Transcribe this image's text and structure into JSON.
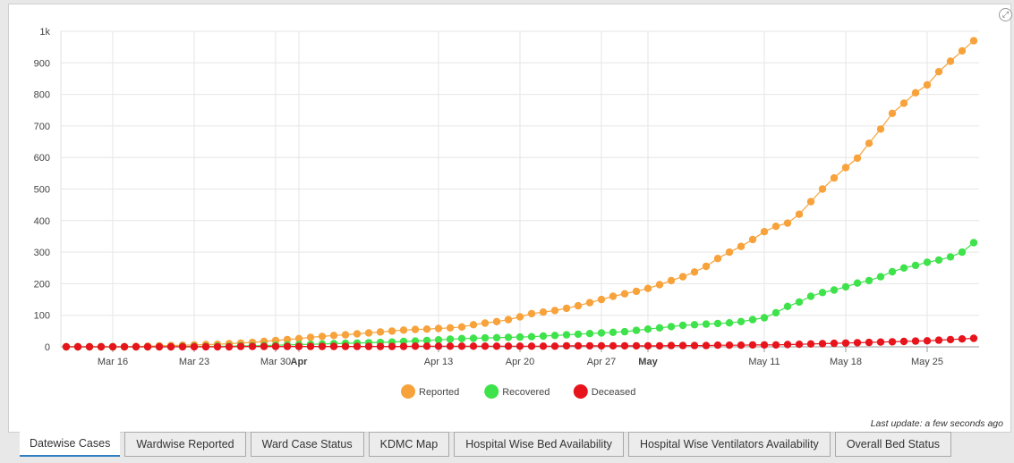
{
  "expand_icon": "expand-icon",
  "last_update": "Last update: a few seconds ago",
  "tabs": [
    {
      "label": "Datewise Cases",
      "active": true
    },
    {
      "label": "Wardwise Reported",
      "active": false
    },
    {
      "label": "Ward Case Status",
      "active": false
    },
    {
      "label": "KDMC Map",
      "active": false
    },
    {
      "label": "Hospital Wise Bed Availability",
      "active": false
    },
    {
      "label": "Hospital Wise Ventilators Availability",
      "active": false
    },
    {
      "label": "Overall Bed Status",
      "active": false
    }
  ],
  "chart_data": {
    "type": "line",
    "title": "",
    "xlabel": "",
    "ylabel": "",
    "x_start": "Mar 12",
    "x_end": "May 29",
    "x_ticks": [
      {
        "label": "Mar 16",
        "date": "Mar 16",
        "bold": false
      },
      {
        "label": "Mar 23",
        "date": "Mar 23",
        "bold": false
      },
      {
        "label": "Mar 30",
        "date": "Mar 30",
        "bold": false
      },
      {
        "label": "Apr",
        "date": "Apr 1",
        "bold": true
      },
      {
        "label": "Apr 13",
        "date": "Apr 13",
        "bold": false
      },
      {
        "label": "Apr 20",
        "date": "Apr 20",
        "bold": false
      },
      {
        "label": "Apr 27",
        "date": "Apr 27",
        "bold": false
      },
      {
        "label": "May",
        "date": "May 1",
        "bold": true
      },
      {
        "label": "May 11",
        "date": "May 11",
        "bold": false
      },
      {
        "label": "May 18",
        "date": "May 18",
        "bold": false
      },
      {
        "label": "May 25",
        "date": "May 25",
        "bold": false
      }
    ],
    "ylim": [
      0,
      1000
    ],
    "y_ticks": [
      {
        "value": 0,
        "label": "0"
      },
      {
        "value": 100,
        "label": "100"
      },
      {
        "value": 200,
        "label": "200"
      },
      {
        "value": 300,
        "label": "300"
      },
      {
        "value": 400,
        "label": "400"
      },
      {
        "value": 500,
        "label": "500"
      },
      {
        "value": 600,
        "label": "600"
      },
      {
        "value": 700,
        "label": "700"
      },
      {
        "value": 800,
        "label": "800"
      },
      {
        "value": 900,
        "label": "900"
      },
      {
        "value": 1000,
        "label": "1k"
      }
    ],
    "grid": true,
    "legend_position": "bottom-center",
    "series": [
      {
        "name": "Reported",
        "color": "#f7a23b",
        "values": [
          0,
          0,
          0,
          0,
          0,
          0,
          1,
          2,
          3,
          4,
          5,
          6,
          7,
          8,
          10,
          12,
          14,
          17,
          20,
          23,
          26,
          30,
          33,
          36,
          38,
          41,
          44,
          47,
          50,
          53,
          55,
          56,
          58,
          60,
          63,
          70,
          75,
          80,
          86,
          95,
          105,
          110,
          115,
          122,
          130,
          140,
          150,
          160,
          168,
          176,
          185,
          197,
          210,
          222,
          237,
          255,
          280,
          300,
          318,
          340,
          365,
          382,
          392,
          420,
          460,
          500,
          535,
          568,
          598,
          645,
          690,
          740,
          772,
          805,
          830,
          872,
          905,
          938,
          970
        ],
        "curve_offset": 0.0
      },
      {
        "name": "Recovered",
        "color": "#3ee24a",
        "values": [
          0,
          0,
          0,
          0,
          0,
          0,
          0,
          0,
          0,
          0,
          1,
          1,
          1,
          2,
          2,
          3,
          3,
          4,
          5,
          6,
          7,
          8,
          9,
          10,
          11,
          12,
          13,
          14,
          15,
          17,
          18,
          20,
          22,
          24,
          26,
          27,
          28,
          29,
          30,
          31,
          32,
          34,
          36,
          38,
          40,
          42,
          44,
          46,
          48,
          52,
          56,
          60,
          64,
          68,
          70,
          72,
          74,
          76,
          80,
          86,
          92,
          108,
          128,
          142,
          160,
          172,
          180,
          190,
          202,
          210,
          222,
          238,
          250,
          258,
          268,
          275,
          285,
          300,
          330
        ],
        "curve_offset": 0.0
      },
      {
        "name": "Deceased",
        "color": "#e8141c",
        "values": [
          0,
          0,
          0,
          0,
          0,
          0,
          0,
          0,
          0,
          0,
          0,
          0,
          0,
          0,
          0,
          1,
          1,
          1,
          1,
          1,
          1,
          1,
          1,
          1,
          1,
          1,
          1,
          1,
          1,
          1,
          2,
          2,
          2,
          2,
          2,
          2,
          2,
          2,
          2,
          2,
          2,
          2,
          2,
          3,
          3,
          3,
          3,
          3,
          3,
          3,
          3,
          3,
          4,
          4,
          4,
          4,
          5,
          5,
          5,
          6,
          6,
          6,
          7,
          8,
          9,
          10,
          11,
          12,
          13,
          14,
          15,
          16,
          17,
          18,
          19,
          21,
          23,
          25,
          27
        ],
        "curve_offset": 0.0
      }
    ]
  }
}
